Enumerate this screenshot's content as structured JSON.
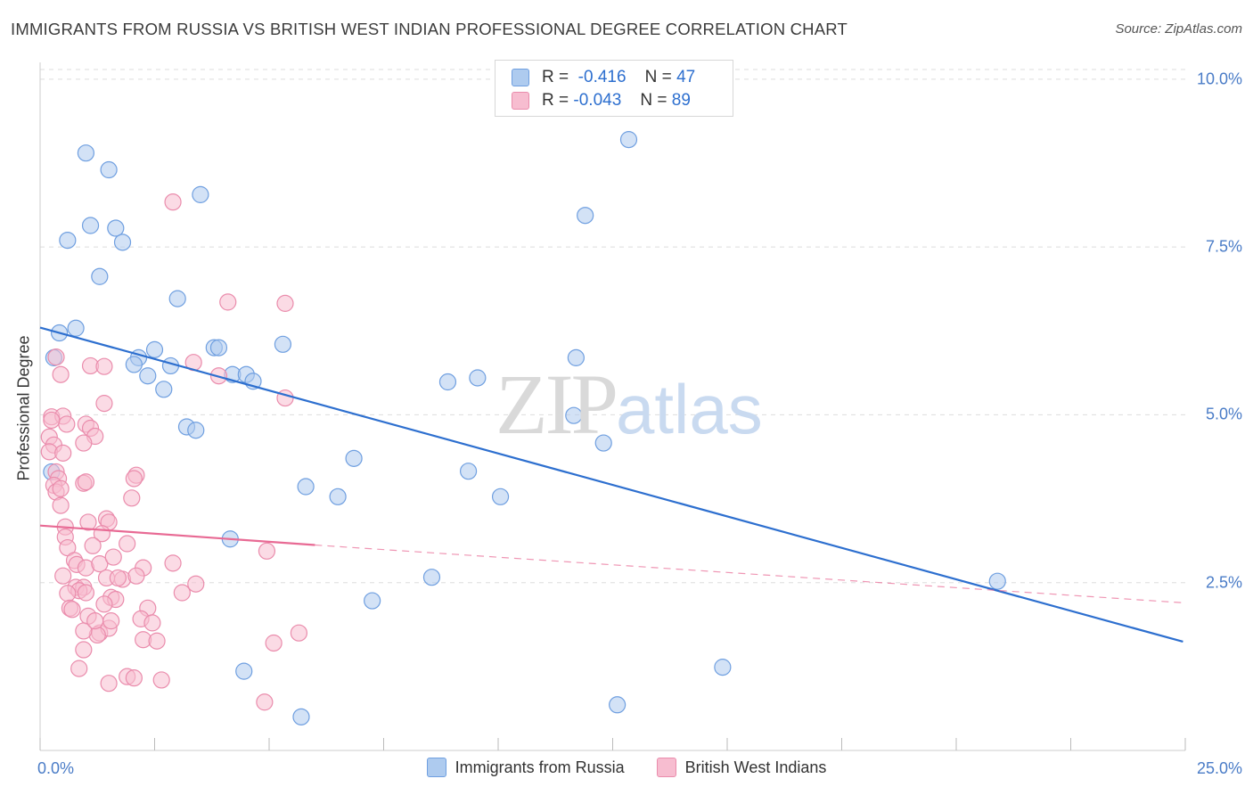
{
  "title": "IMMIGRANTS FROM RUSSIA VS BRITISH WEST INDIAN PROFESSIONAL DEGREE CORRELATION CHART",
  "source": "Source: ZipAtlas.com",
  "watermark": {
    "part1": "ZIP",
    "part2": "atlas"
  },
  "stats": [
    {
      "r_label": "R =",
      "r_value": "-0.416",
      "n_label": "N =",
      "n_value": "47",
      "color": "#aecbef"
    },
    {
      "r_label": "R =",
      "r_value": "-0.043",
      "n_label": "N =",
      "n_value": "89",
      "color": "#f7bdd0"
    }
  ],
  "legend": [
    {
      "label": "Immigrants from Russia",
      "color": "#aecbef"
    },
    {
      "label": "British West Indians",
      "color": "#f7bdd0"
    }
  ],
  "chart_data": {
    "type": "scatter",
    "title": "IMMIGRANTS FROM RUSSIA VS BRITISH WEST INDIAN PROFESSIONAL DEGREE CORRELATION CHART",
    "xlabel": "",
    "ylabel": "Professional Degree",
    "xlim": [
      0,
      25
    ],
    "ylim": [
      0,
      10.25
    ],
    "x_tick_labels": [
      "0.0%",
      "25.0%"
    ],
    "y_ticks": [
      2.5,
      5.0,
      7.5,
      10.0
    ],
    "y_tick_labels": [
      "2.5%",
      "5.0%",
      "7.5%",
      "10.0%"
    ],
    "grid": true,
    "series": [
      {
        "name": "Immigrants from Russia",
        "color": "#6f9fe0",
        "fill": "#aecbef",
        "trend": {
          "x": [
            0,
            24.95
          ],
          "y": [
            6.3,
            1.62
          ],
          "style": "solid",
          "color": "#2d6fcf"
        },
        "points": [
          [
            1.0,
            8.9
          ],
          [
            1.5,
            8.65
          ],
          [
            3.5,
            8.28
          ],
          [
            1.1,
            7.82
          ],
          [
            1.65,
            7.78
          ],
          [
            0.6,
            7.6
          ],
          [
            1.8,
            7.57
          ],
          [
            1.3,
            7.06
          ],
          [
            3.0,
            6.73
          ],
          [
            0.78,
            6.29
          ],
          [
            0.42,
            6.22
          ],
          [
            2.5,
            5.97
          ],
          [
            3.8,
            6.0
          ],
          [
            3.9,
            6.0
          ],
          [
            5.3,
            6.05
          ],
          [
            2.15,
            5.85
          ],
          [
            2.05,
            5.75
          ],
          [
            2.85,
            5.73
          ],
          [
            2.35,
            5.58
          ],
          [
            4.2,
            5.6
          ],
          [
            4.5,
            5.6
          ],
          [
            4.65,
            5.5
          ],
          [
            2.7,
            5.38
          ],
          [
            0.3,
            5.85
          ],
          [
            8.9,
            5.49
          ],
          [
            9.55,
            5.55
          ],
          [
            11.7,
            5.85
          ],
          [
            3.2,
            4.82
          ],
          [
            3.4,
            4.77
          ],
          [
            11.65,
            4.99
          ],
          [
            12.3,
            4.58
          ],
          [
            6.85,
            4.35
          ],
          [
            9.35,
            4.16
          ],
          [
            5.8,
            3.93
          ],
          [
            6.5,
            3.78
          ],
          [
            10.05,
            3.78
          ],
          [
            4.15,
            3.15
          ],
          [
            8.55,
            2.58
          ],
          [
            7.25,
            2.23
          ],
          [
            20.9,
            2.52
          ],
          [
            4.45,
            1.18
          ],
          [
            14.9,
            1.24
          ],
          [
            5.7,
            0.5
          ],
          [
            12.6,
            0.68
          ],
          [
            11.9,
            7.97
          ],
          [
            12.85,
            9.1
          ],
          [
            0.25,
            4.15
          ]
        ]
      },
      {
        "name": "British West Indians",
        "color": "#ea8cac",
        "fill": "#f7bdd0",
        "trend": {
          "x": [
            0,
            6.0
          ],
          "y": [
            3.35,
            3.06
          ],
          "style": "solid",
          "color": "#e86a94",
          "extension": {
            "x": [
              6.0,
              24.95
            ],
            "y": [
              3.06,
              2.2
            ],
            "style": "dashed"
          }
        },
        "points": [
          [
            2.9,
            8.17
          ],
          [
            4.1,
            6.68
          ],
          [
            5.35,
            6.66
          ],
          [
            0.35,
            5.86
          ],
          [
            0.45,
            5.6
          ],
          [
            1.1,
            5.73
          ],
          [
            1.4,
            5.72
          ],
          [
            3.35,
            5.78
          ],
          [
            3.9,
            5.58
          ],
          [
            5.35,
            5.25
          ],
          [
            1.4,
            5.17
          ],
          [
            0.25,
            4.97
          ],
          [
            0.5,
            4.98
          ],
          [
            0.58,
            4.86
          ],
          [
            1.0,
            4.86
          ],
          [
            1.1,
            4.8
          ],
          [
            1.2,
            4.68
          ],
          [
            0.95,
            4.58
          ],
          [
            0.2,
            4.67
          ],
          [
            0.3,
            4.55
          ],
          [
            0.2,
            4.45
          ],
          [
            0.5,
            4.43
          ],
          [
            0.35,
            4.15
          ],
          [
            0.4,
            4.05
          ],
          [
            0.3,
            3.95
          ],
          [
            0.35,
            3.85
          ],
          [
            0.45,
            3.65
          ],
          [
            0.55,
            3.33
          ],
          [
            1.05,
            3.4
          ],
          [
            1.45,
            3.45
          ],
          [
            1.5,
            3.4
          ],
          [
            1.35,
            3.23
          ],
          [
            0.55,
            3.18
          ],
          [
            0.6,
            3.02
          ],
          [
            1.15,
            3.05
          ],
          [
            1.9,
            3.08
          ],
          [
            2.1,
            4.1
          ],
          [
            2.05,
            4.05
          ],
          [
            2.0,
            3.76
          ],
          [
            0.75,
            2.83
          ],
          [
            0.8,
            2.77
          ],
          [
            1.0,
            2.72
          ],
          [
            1.3,
            2.78
          ],
          [
            1.6,
            2.88
          ],
          [
            2.25,
            2.72
          ],
          [
            2.9,
            2.79
          ],
          [
            4.95,
            2.97
          ],
          [
            0.5,
            2.6
          ],
          [
            1.45,
            2.57
          ],
          [
            1.8,
            2.55
          ],
          [
            2.1,
            2.6
          ],
          [
            0.78,
            2.43
          ],
          [
            0.95,
            2.43
          ],
          [
            0.85,
            2.38
          ],
          [
            1.0,
            2.35
          ],
          [
            0.6,
            2.34
          ],
          [
            3.1,
            2.35
          ],
          [
            3.4,
            2.48
          ],
          [
            1.55,
            2.28
          ],
          [
            1.65,
            2.25
          ],
          [
            1.4,
            2.18
          ],
          [
            0.65,
            2.12
          ],
          [
            0.7,
            2.1
          ],
          [
            2.35,
            2.12
          ],
          [
            1.05,
            2.0
          ],
          [
            2.2,
            1.96
          ],
          [
            2.45,
            1.9
          ],
          [
            1.3,
            1.75
          ],
          [
            1.5,
            1.82
          ],
          [
            1.25,
            1.72
          ],
          [
            0.95,
            1.78
          ],
          [
            1.55,
            1.93
          ],
          [
            2.25,
            1.65
          ],
          [
            2.55,
            1.63
          ],
          [
            5.1,
            1.6
          ],
          [
            5.65,
            1.75
          ],
          [
            0.95,
            1.5
          ],
          [
            0.85,
            1.22
          ],
          [
            1.9,
            1.1
          ],
          [
            2.05,
            1.08
          ],
          [
            1.5,
            1.0
          ],
          [
            2.65,
            1.05
          ],
          [
            4.9,
            0.72
          ],
          [
            1.2,
            1.93
          ],
          [
            1.7,
            2.57
          ],
          [
            0.25,
            4.92
          ],
          [
            0.95,
            3.98
          ],
          [
            0.45,
            3.9
          ],
          [
            1.0,
            4.0
          ]
        ]
      }
    ]
  }
}
